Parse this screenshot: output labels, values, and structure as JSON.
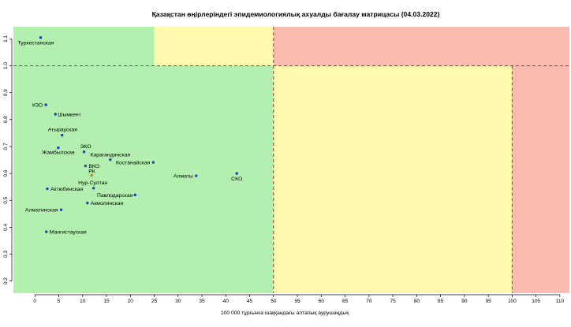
{
  "chart_data": {
    "type": "scatter",
    "title": "Қазақстан өңірлеріндегі эпидемиологиялық ахуалды бағалау матрицасы  (04.03.2022)",
    "xlabel": "100 000 тұрғынға шаққандағы аптапық аурушаңдық",
    "ylabel": "",
    "xlim": [
      -4.5,
      112
    ],
    "ylim": [
      0.155,
      1.145
    ],
    "x_ticks": [
      0,
      5,
      10,
      15,
      20,
      25,
      30,
      35,
      40,
      45,
      50,
      55,
      60,
      65,
      70,
      75,
      80,
      85,
      90,
      95,
      100,
      105,
      110
    ],
    "y_ticks": [
      0.2,
      0.3,
      0.4,
      0.5,
      0.6,
      0.7,
      0.8,
      0.9,
      1.0,
      1.1
    ],
    "zones": [
      {
        "x": [
          -4.5,
          25
        ],
        "y": [
          1.0,
          1.145
        ],
        "color": "#b3f0b0"
      },
      {
        "x": [
          25,
          50
        ],
        "y": [
          1.0,
          1.145
        ],
        "color": "#fef9ad"
      },
      {
        "x": [
          50,
          112
        ],
        "y": [
          1.0,
          1.145
        ],
        "color": "#fbbbb0"
      },
      {
        "x": [
          -4.5,
          50
        ],
        "y": [
          0.155,
          1.0
        ],
        "color": "#b3f0b0"
      },
      {
        "x": [
          50,
          100
        ],
        "y": [
          0.155,
          1.0
        ],
        "color": "#fef9ad"
      },
      {
        "x": [
          100,
          112
        ],
        "y": [
          0.155,
          1.0
        ],
        "color": "#fbbbb0"
      }
    ],
    "threshold_lines": [
      {
        "axis": "y",
        "value": 1.0,
        "x_range": [
          -4.5,
          112
        ]
      },
      {
        "axis": "x",
        "value": 50,
        "y_range": [
          0.155,
          1.145
        ]
      },
      {
        "axis": "x",
        "value": 100,
        "y_range": [
          0.155,
          1.0
        ]
      }
    ],
    "points": [
      {
        "label": "Туркестанская",
        "x": 1.2,
        "y": 1.105,
        "color": "#1f3fbf",
        "anchor": "middle",
        "dx": -6,
        "dy": 9
      },
      {
        "label": "КЗО",
        "x": 2.3,
        "y": 0.855,
        "color": "#1f3fbf",
        "anchor": "end",
        "dx": -4,
        "dy": 2.5
      },
      {
        "label": "Шымкент",
        "x": 4.3,
        "y": 0.82,
        "color": "#1f3fbf",
        "anchor": "start",
        "dx": 3,
        "dy": 2.5
      },
      {
        "label": "Атырауская",
        "x": 5.7,
        "y": 0.742,
        "color": "#1f3fbf",
        "anchor": "start",
        "dx": -18,
        "dy": -5
      },
      {
        "label": "ЭКО",
        "x": 10.3,
        "y": 0.68,
        "color": "#1f3fbf",
        "anchor": "start",
        "dx": -5,
        "dy": -5
      },
      {
        "label": "Жамбылская",
        "x": 4.9,
        "y": 0.695,
        "color": "#1f3fbf",
        "anchor": "middle",
        "dx": 0,
        "dy": 8
      },
      {
        "label": "Карагандинская",
        "x": 15.8,
        "y": 0.651,
        "color": "#1f3fbf",
        "anchor": "middle",
        "dx": 0,
        "dy": -4
      },
      {
        "label": "Костанайская",
        "x": 24.8,
        "y": 0.641,
        "color": "#1f3fbf",
        "anchor": "end",
        "dx": -4,
        "dy": 2.5
      },
      {
        "label": "ВКО",
        "x": 10.6,
        "y": 0.628,
        "color": "#1f3fbf",
        "anchor": "start",
        "dx": 4,
        "dy": 2.5
      },
      {
        "label": "РК",
        "x": 11.9,
        "y": 0.593,
        "color": "#d27a10",
        "label_color": "#c07020",
        "anchor": "start",
        "dx": -4,
        "dy": -3
      },
      {
        "label": "Алматы",
        "x": 33.8,
        "y": 0.591,
        "color": "#1f3fbf",
        "anchor": "end",
        "dx": -4,
        "dy": 2.5
      },
      {
        "label": "СКО",
        "x": 42.3,
        "y": 0.6,
        "color": "#1f3fbf",
        "anchor": "middle",
        "dx": 0,
        "dy": 9
      },
      {
        "label": "Нур-Султан",
        "x": 12.3,
        "y": 0.545,
        "color": "#1f3fbf",
        "anchor": "middle",
        "dx": -1,
        "dy": -5
      },
      {
        "label": "Актюбинская",
        "x": 2.6,
        "y": 0.543,
        "color": "#1f3fbf",
        "anchor": "start",
        "dx": 4,
        "dy": 2.5
      },
      {
        "label": "Павлодарская",
        "x": 21.0,
        "y": 0.52,
        "color": "#1f3fbf",
        "anchor": "end",
        "dx": -3,
        "dy": 2.5
      },
      {
        "label": "Акмолинская",
        "x": 11.0,
        "y": 0.49,
        "color": "#1f3fbf",
        "anchor": "start",
        "dx": 4,
        "dy": 2.5
      },
      {
        "label": "Алматинская",
        "x": 5.5,
        "y": 0.465,
        "color": "#1f3fbf",
        "anchor": "end",
        "dx": -4,
        "dy": 2.5
      },
      {
        "label": "Мангистауская",
        "x": 2.4,
        "y": 0.383,
        "color": "#1f3fbf",
        "anchor": "start",
        "dx": 4,
        "dy": 2.5
      }
    ]
  }
}
